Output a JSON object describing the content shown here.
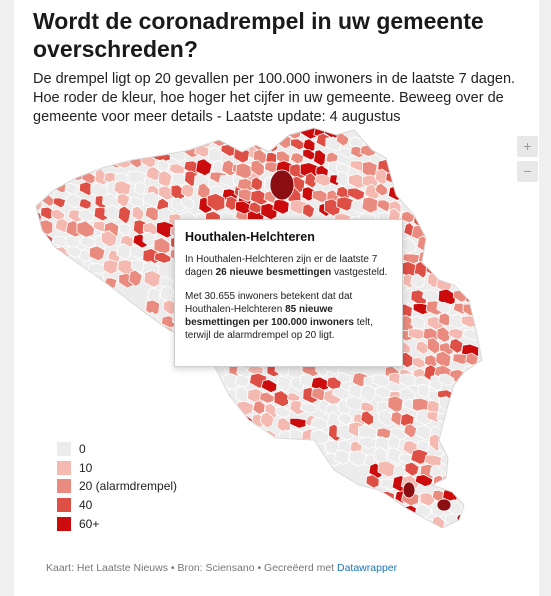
{
  "title": "Wordt de coronadrempel in uw gemeente overschreden?",
  "subtitle": "De drempel ligt op 20 gevallen per 100.000 inwoners in de laatste 7 dagen. Hoe roder de kleur, hoe hoger het cijfer in uw gemeente. Beweeg over de gemeente voor meer details - Laatste update: 4 augustus",
  "zoom": {
    "in_label": "+",
    "out_label": "−"
  },
  "tooltip": {
    "municipality": "Houthalen-Helchteren",
    "p1_pre": "In Houthalen-Helchteren zijn er de laatste 7 dagen ",
    "p1_bold": "26 nieuwe besmettingen",
    "p1_post": " vastgesteld.",
    "p2_pre": "Met 30.655 inwoners betekent dat dat Houthalen-Helchteren ",
    "p2_bold": "85 nieuwe besmettingen per 100.000 inwoners",
    "p2_post": " telt, terwijl de alarmdrempel op 20 ligt."
  },
  "legend": [
    {
      "label": "0",
      "color": "#ececec"
    },
    {
      "label": "10",
      "color": "#f4b9b0"
    },
    {
      "label": "20 (alarmdrempel)",
      "color": "#ea8b7f"
    },
    {
      "label": "40",
      "color": "#de4f45"
    },
    {
      "label": "60+",
      "color": "#cc0c0c"
    }
  ],
  "map": {
    "colors": {
      "none": "#ececec",
      "c10": "#f4b9b0",
      "c20": "#ea8b7f",
      "c40": "#de4f45",
      "c60": "#cc0c0c",
      "dark": "#8b0e13",
      "stroke": "#ffffff"
    }
  },
  "footer": {
    "prefix": "Kaart: Het Laatste Nieuws • Bron: Sciensano • Gecreëerd met ",
    "link": "Datawrapper"
  }
}
